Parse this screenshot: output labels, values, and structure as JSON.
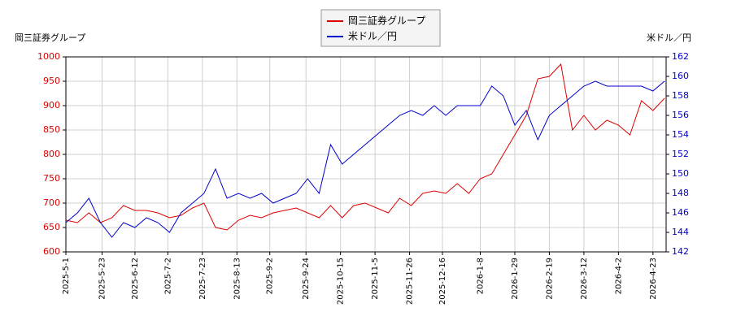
{
  "chart_data": {
    "type": "line",
    "y_label": "岡三証券グループ",
    "y2_label": "米ドル／円",
    "x": [
      "2025-05-01",
      "2025-05-08",
      "2025-05-15",
      "2025-05-22",
      "2025-05-29",
      "2025-06-05",
      "2025-06-12",
      "2025-06-19",
      "2025-06-26",
      "2025-07-03",
      "2025-07-10",
      "2025-07-17",
      "2025-07-24",
      "2025-07-31",
      "2025-08-07",
      "2025-08-14",
      "2025-08-21",
      "2025-08-28",
      "2025-09-04",
      "2025-09-11",
      "2025-09-18",
      "2025-09-25",
      "2025-10-02",
      "2025-10-09",
      "2025-10-16",
      "2025-10-23",
      "2025-10-30",
      "2025-11-06",
      "2025-11-13",
      "2025-11-20",
      "2025-11-27",
      "2025-12-04",
      "2025-12-11",
      "2025-12-18",
      "2025-12-25",
      "2026-01-01",
      "2026-01-08",
      "2026-01-15",
      "2026-01-22",
      "2026-01-29",
      "2026-02-05",
      "2026-02-12",
      "2026-02-19",
      "2026-02-26",
      "2026-03-05",
      "2026-03-12",
      "2026-03-19",
      "2026-03-26",
      "2026-04-02",
      "2026-04-09",
      "2026-04-16",
      "2026-04-23",
      "2026-04-30"
    ],
    "series": [
      {
        "name": "岡三証券グループ",
        "color": "#dd0000",
        "axis": "y",
        "values": [
          665,
          660,
          680,
          660,
          670,
          695,
          685,
          685,
          680,
          670,
          675,
          690,
          700,
          650,
          645,
          665,
          675,
          670,
          680,
          685,
          690,
          680,
          670,
          695,
          670,
          695,
          700,
          690,
          680,
          710,
          695,
          720,
          725,
          720,
          740,
          720,
          750,
          760,
          800,
          840,
          880,
          955,
          960,
          985,
          850,
          880,
          850,
          870,
          860,
          840,
          910,
          890,
          915
        ]
      },
      {
        "name": "米ドル／円",
        "color": "#0000cc",
        "axis": "y2",
        "values": [
          145,
          146,
          147.5,
          145,
          143.5,
          145,
          144.5,
          145.5,
          145,
          144,
          146,
          147,
          148,
          150.5,
          147.5,
          148,
          147.5,
          148,
          147,
          147.5,
          148,
          149.5,
          148,
          153,
          151,
          152,
          153,
          154,
          155,
          156,
          156.5,
          156,
          157,
          156,
          157,
          157,
          157,
          159,
          158,
          155,
          156.5,
          153.5,
          156,
          157,
          158,
          159,
          159.5,
          159,
          159,
          159,
          159,
          158.5,
          159.5
        ]
      }
    ],
    "xlim": [
      "2025-05-01",
      "2026-05-01"
    ],
    "xticks": [
      {
        "value": "2025-05-01",
        "label": "2025-5-1"
      },
      {
        "value": "2025-05-23",
        "label": "2025-5-23"
      },
      {
        "value": "2025-06-12",
        "label": "2025-6-12"
      },
      {
        "value": "2025-07-02",
        "label": "2025-7-2"
      },
      {
        "value": "2025-07-23",
        "label": "2025-7-23"
      },
      {
        "value": "2025-08-13",
        "label": "2025-8-13"
      },
      {
        "value": "2025-09-02",
        "label": "2025-9-2"
      },
      {
        "value": "2025-09-24",
        "label": "2025-9-24"
      },
      {
        "value": "2025-10-15",
        "label": "2025-10-15"
      },
      {
        "value": "2025-11-05",
        "label": "2025-11-5"
      },
      {
        "value": "2025-11-26",
        "label": "2025-11-26"
      },
      {
        "value": "2025-12-16",
        "label": "2025-12-16"
      },
      {
        "value": "2026-01-08",
        "label": "2026-1-8"
      },
      {
        "value": "2026-01-29",
        "label": "2026-1-29"
      },
      {
        "value": "2026-02-19",
        "label": "2026-2-19"
      },
      {
        "value": "2026-03-12",
        "label": "2026-3-12"
      },
      {
        "value": "2026-04-02",
        "label": "2026-4-2"
      },
      {
        "value": "2026-04-23",
        "label": "2026-4-23"
      }
    ],
    "ylim": [
      600,
      1000
    ],
    "yticks": [
      600,
      650,
      700,
      750,
      800,
      850,
      900,
      950,
      1000
    ],
    "y2lim": [
      142,
      162
    ],
    "y2ticks": [
      142,
      144,
      146,
      148,
      150,
      152,
      154,
      156,
      158,
      160,
      162
    ],
    "grid": true,
    "legend": "top"
  }
}
